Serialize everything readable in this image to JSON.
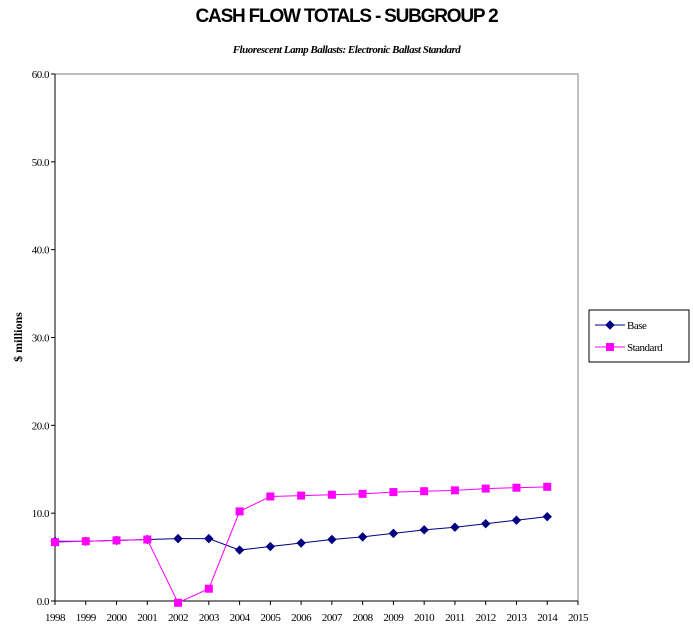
{
  "chart_data": {
    "type": "line",
    "title": "CASH FLOW TOTALS - SUBGROUP 2",
    "subtitle": "Fluorescent Lamp Ballasts: Electronic Ballast Standard",
    "xlabel": "",
    "ylabel": "$ millions",
    "x": [
      1998,
      1999,
      2000,
      2001,
      2002,
      2003,
      2004,
      2005,
      2006,
      2007,
      2008,
      2009,
      2010,
      2011,
      2012,
      2013,
      2014
    ],
    "x_ticks": [
      "1998",
      "1999",
      "2000",
      "2001",
      "2002",
      "2003",
      "2004",
      "2005",
      "2006",
      "2007",
      "2008",
      "2009",
      "2010",
      "2011",
      "2012",
      "2013",
      "2014",
      "2015"
    ],
    "xlim": [
      1998,
      2015
    ],
    "ylim": [
      0,
      60
    ],
    "y_ticks": [
      "0.0",
      "10.0",
      "20.0",
      "30.0",
      "40.0",
      "50.0",
      "60.0"
    ],
    "grid": false,
    "legend_position": "right",
    "series": [
      {
        "name": "Base",
        "color": "#000080",
        "marker": "diamond",
        "values": [
          6.8,
          6.8,
          6.9,
          7.0,
          7.1,
          7.1,
          5.8,
          6.2,
          6.6,
          7.0,
          7.3,
          7.7,
          8.1,
          8.4,
          8.8,
          9.2,
          9.6
        ]
      },
      {
        "name": "Standard",
        "color": "#ff00ff",
        "marker": "square",
        "values": [
          6.7,
          6.8,
          6.9,
          7.0,
          -0.2,
          1.4,
          10.2,
          11.9,
          12.0,
          12.1,
          12.2,
          12.4,
          12.5,
          12.6,
          12.8,
          12.9,
          13.0
        ]
      }
    ]
  }
}
